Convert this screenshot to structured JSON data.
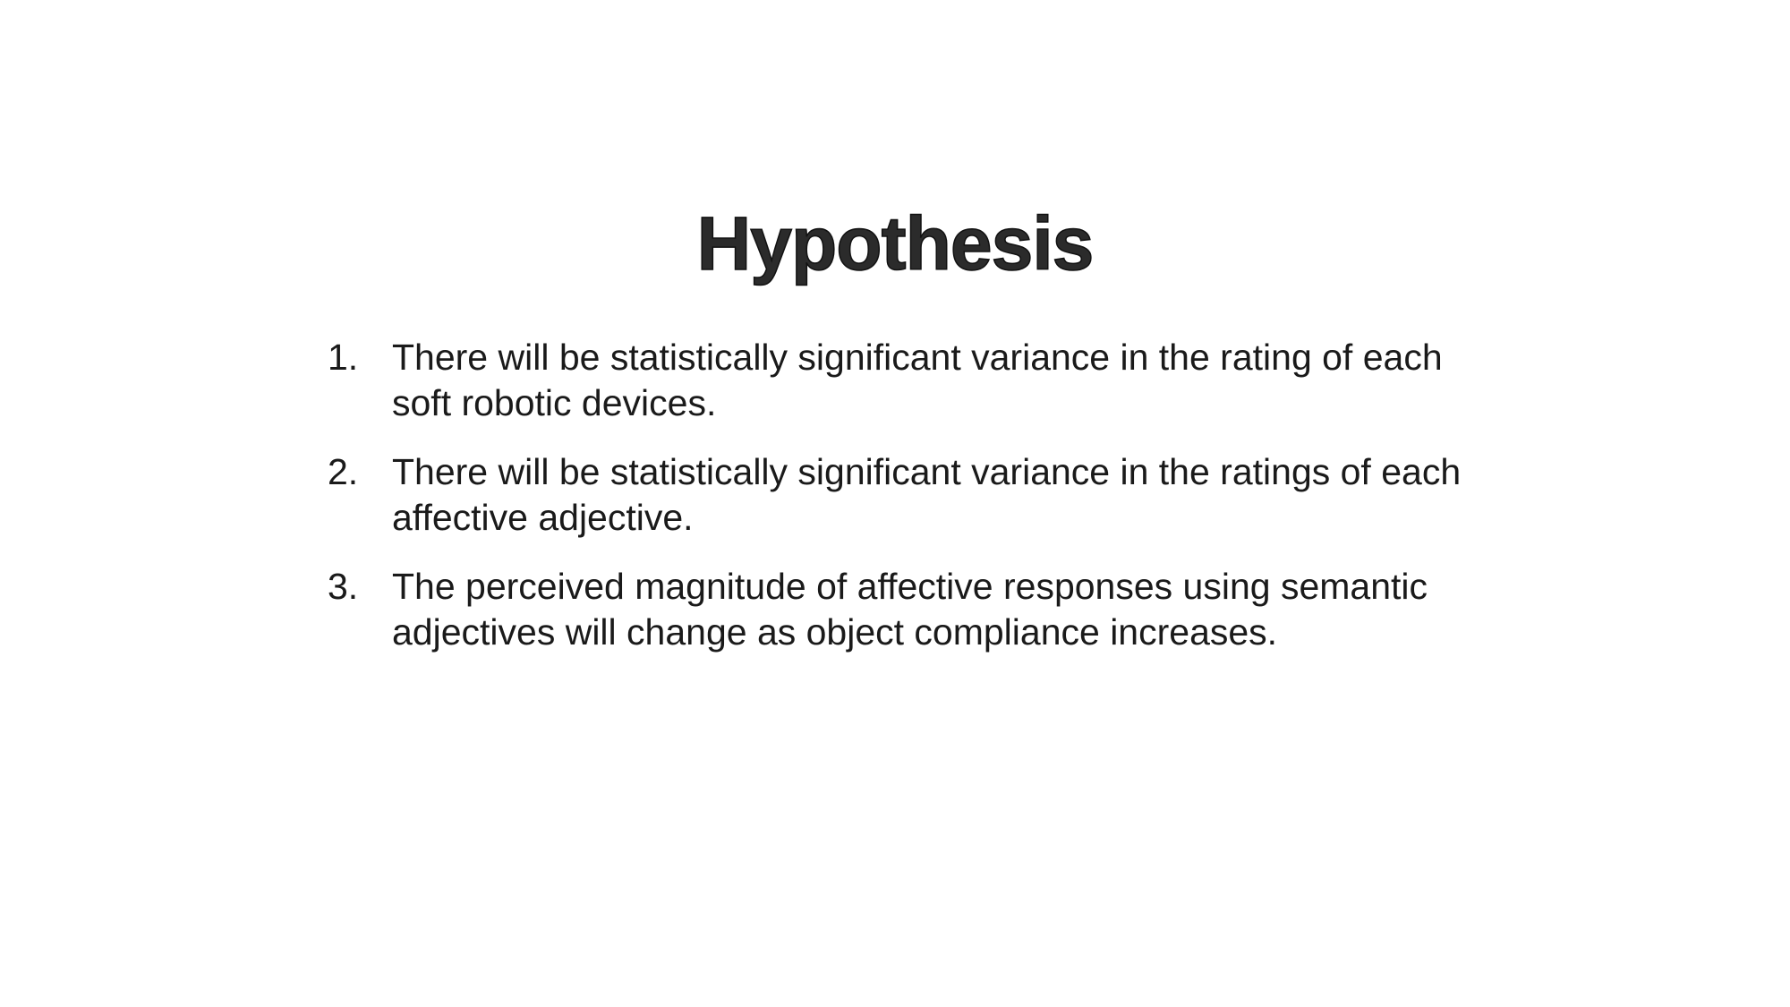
{
  "slide": {
    "title": "Hypothesis",
    "items": [
      {
        "number": "1.",
        "text": "There will be statistically significant variance in the rating of each\nsoft robotic devices."
      },
      {
        "number": "2.",
        "text": "There will be statistically significant variance in the ratings of each\naffective adjective."
      },
      {
        "number": "3.",
        "text": "The perceived magnitude of affective responses using semantic\nadjectives will change as object compliance increases."
      }
    ]
  }
}
